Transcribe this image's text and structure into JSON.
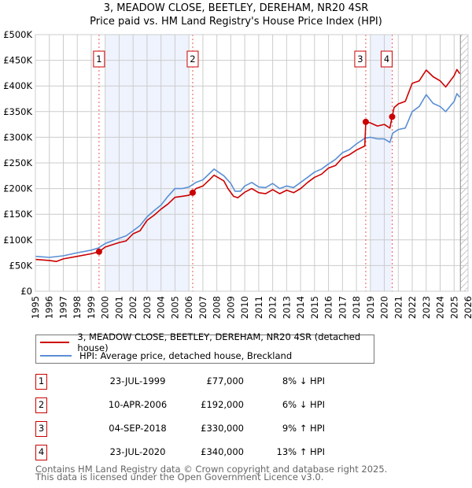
{
  "title_line1": "3, MEADOW CLOSE, BEETLEY, DEREHAM, NR20 4SR",
  "title_line2": "Price paid vs. HM Land Registry's House Price Index (HPI)",
  "legend": {
    "property": "3, MEADOW CLOSE, BEETLEY, DEREHAM, NR20 4SR (detached house)",
    "hpi": "HPI: Average price, detached house, Breckland"
  },
  "colors": {
    "property": "#cc0000",
    "hpi": "#5b8fd4",
    "shade": "#eef3fd",
    "grid": "#cccccc"
  },
  "sales": [
    {
      "num": "1",
      "date": "23-JUL-1999",
      "price": "£77,000",
      "pct": "8% ↓ HPI",
      "x": 1999.56,
      "value": 77
    },
    {
      "num": "2",
      "date": "10-APR-2006",
      "price": "£192,000",
      "pct": "6% ↓ HPI",
      "x": 2006.27,
      "value": 192
    },
    {
      "num": "3",
      "date": "04-SEP-2018",
      "price": "£330,000",
      "pct": "9% ↑ HPI",
      "x": 2018.67,
      "value": 330
    },
    {
      "num": "4",
      "date": "23-JUL-2020",
      "price": "£340,000",
      "pct": "13% ↑ HPI",
      "x": 2020.56,
      "value": 340
    }
  ],
  "footer": {
    "line1": "Contains HM Land Registry data © Crown copyright and database right 2025.",
    "line2": "This data is licensed under the Open Government Licence v3.0."
  },
  "chart_data": {
    "type": "line",
    "title": "3, MEADOW CLOSE, BEETLEY, DEREHAM, NR20 4SR — Price paid vs. HM Land Registry's House Price Index (HPI)",
    "xlabel": "",
    "ylabel": "",
    "xlim": [
      1995,
      2026
    ],
    "ylim": [
      0,
      500
    ],
    "yunit": "£K",
    "yticks": [
      0,
      50,
      100,
      150,
      200,
      250,
      300,
      350,
      400,
      450,
      500
    ],
    "ytick_labels": [
      "£0",
      "£50K",
      "£100K",
      "£150K",
      "£200K",
      "£250K",
      "£300K",
      "£350K",
      "£400K",
      "£450K",
      "£500K"
    ],
    "xticks": [
      1995,
      1996,
      1997,
      1998,
      1999,
      2000,
      2001,
      2002,
      2003,
      2004,
      2005,
      2006,
      2007,
      2008,
      2009,
      2010,
      2011,
      2012,
      2013,
      2014,
      2015,
      2016,
      2017,
      2018,
      2019,
      2020,
      2021,
      2022,
      2023,
      2024,
      2025,
      2026
    ],
    "grid": true,
    "shaded_ranges": [
      [
        2000,
        2006
      ],
      [
        2019,
        2020.5
      ]
    ],
    "forecast_hatch_from": 2025.45,
    "series": [
      {
        "name": "3, MEADOW CLOSE, BEETLEY, DEREHAM, NR20 4SR (detached house)",
        "color": "#cc0000",
        "x": [
          1995,
          1996,
          1996.5,
          1997,
          1998,
          1999,
          1999.56,
          2000,
          2001,
          2001.5,
          2002,
          2002.5,
          2003,
          2003.5,
          2004,
          2004.5,
          2005,
          2005.5,
          2006,
          2006.27,
          2006.5,
          2007,
          2007.5,
          2007.8,
          2008.5,
          2008.8,
          2009.2,
          2009.5,
          2010,
          2010.5,
          2011,
          2011.5,
          2012,
          2012.5,
          2013,
          2013.5,
          2014,
          2014.5,
          2015,
          2015.5,
          2016,
          2016.5,
          2017,
          2017.5,
          2018,
          2018.6,
          2018.67,
          2019,
          2019.5,
          2020,
          2020.4,
          2020.56,
          2020.7,
          2021,
          2021.5,
          2022,
          2022.5,
          2023,
          2023.5,
          2024,
          2024.4,
          2025,
          2025.2,
          2025.4
        ],
        "y": [
          62,
          60,
          58,
          63,
          68,
          73,
          77,
          86,
          95,
          98,
          112,
          118,
          138,
          148,
          160,
          170,
          183,
          185,
          187,
          192,
          200,
          205,
          218,
          226,
          215,
          200,
          185,
          182,
          193,
          200,
          192,
          190,
          198,
          190,
          197,
          192,
          200,
          212,
          222,
          228,
          240,
          245,
          260,
          266,
          275,
          283,
          330,
          328,
          322,
          325,
          318,
          340,
          358,
          365,
          370,
          405,
          410,
          431,
          418,
          410,
          398,
          420,
          432,
          424
        ]
      },
      {
        "name": "HPI: Average price, detached house, Breckland",
        "color": "#5b8fd4",
        "x": [
          1995,
          1996,
          1997,
          1998,
          1999,
          1999.5,
          2000,
          2001,
          2001.5,
          2002,
          2002.5,
          2003,
          2003.5,
          2004,
          2004.5,
          2005,
          2005.5,
          2006,
          2006.5,
          2007,
          2007.5,
          2007.8,
          2008.5,
          2009,
          2009.3,
          2009.7,
          2010,
          2010.5,
          2011,
          2011.5,
          2012,
          2012.5,
          2013,
          2013.5,
          2014,
          2014.5,
          2015,
          2015.5,
          2016,
          2016.5,
          2017,
          2017.5,
          2018,
          2018.6,
          2019,
          2019.5,
          2020,
          2020.4,
          2020.6,
          2021,
          2021.5,
          2022,
          2022.5,
          2023,
          2023.5,
          2024,
          2024.4,
          2025,
          2025.2,
          2025.4
        ],
        "y": [
          68,
          66,
          69,
          75,
          80,
          84,
          93,
          103,
          108,
          118,
          128,
          145,
          157,
          168,
          185,
          200,
          200,
          203,
          212,
          217,
          230,
          238,
          225,
          210,
          195,
          195,
          205,
          212,
          203,
          202,
          210,
          200,
          205,
          202,
          212,
          222,
          232,
          238,
          248,
          257,
          270,
          276,
          287,
          298,
          300,
          297,
          297,
          290,
          308,
          315,
          318,
          350,
          360,
          383,
          366,
          360,
          350,
          370,
          385,
          378
        ]
      }
    ]
  }
}
